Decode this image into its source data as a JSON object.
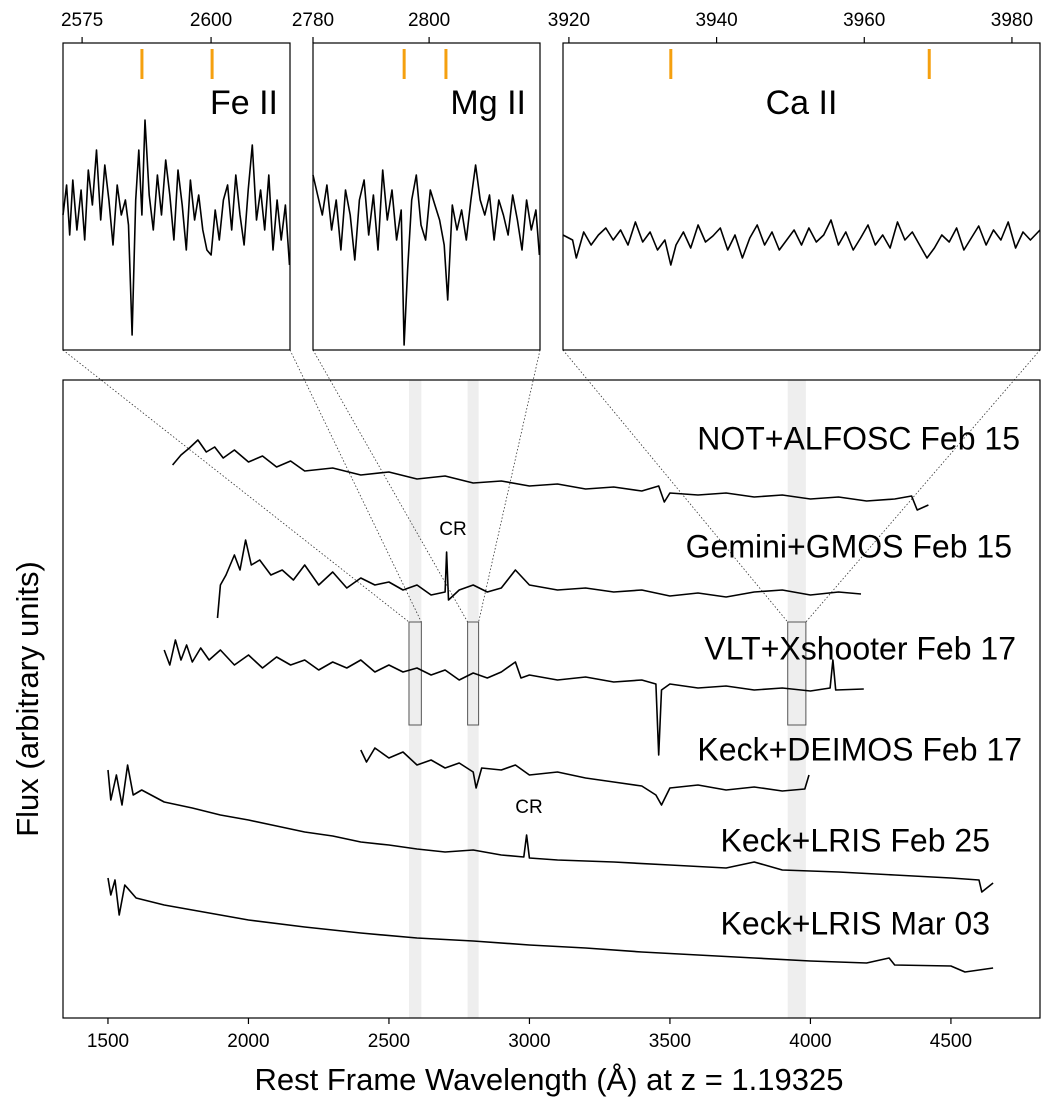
{
  "chart_data": [
    {
      "type": "line",
      "xlabel": "Rest Frame Wavelength (Å) at z = 1.19325",
      "ylabel": "Flux (arbitrary units)",
      "xlim": [
        1340,
        4817
      ],
      "ylim": [
        0,
        638
      ],
      "xticks": [
        1500,
        2000,
        2500,
        3000,
        3500,
        4000,
        4500
      ],
      "grid": false,
      "annotations": [
        "CR",
        "CR"
      ],
      "series": [
        {
          "name": "NOT+ALFOSC Feb 15",
          "color": "#000000",
          "x": [
            1730,
            1760,
            1790,
            1820,
            1850,
            1880,
            1910,
            1950,
            2000,
            2050,
            2100,
            2150,
            2200,
            2300,
            2400,
            2500,
            2600,
            2700,
            2800,
            2900,
            3000,
            3100,
            3200,
            3300,
            3400,
            3460,
            3480,
            3500,
            3600,
            3700,
            3800,
            3900,
            4000,
            4100,
            4200,
            4300,
            4360,
            4380,
            4420
          ],
          "values": [
            553,
            563,
            570,
            578,
            566,
            571,
            560,
            568,
            556,
            562,
            551,
            557,
            547,
            550,
            543,
            546,
            539,
            542,
            535,
            537,
            532,
            534,
            529,
            531,
            527,
            532,
            516,
            525,
            523,
            525,
            521,
            523,
            519,
            521,
            517,
            519,
            522,
            508,
            513
          ]
        },
        {
          "name": "Gemini+GMOS Feb 15",
          "color": "#000000",
          "x": [
            1890,
            1900,
            1920,
            1950,
            1970,
            1990,
            2010,
            2040,
            2080,
            2120,
            2160,
            2200,
            2250,
            2300,
            2350,
            2400,
            2450,
            2500,
            2550,
            2600,
            2650,
            2700,
            2705,
            2712,
            2750,
            2800,
            2850,
            2900,
            2950,
            3000,
            3100,
            3200,
            3300,
            3400,
            3500,
            3600,
            3700,
            3800,
            3900,
            4000,
            4100,
            4180
          ],
          "values": [
            400,
            433,
            443,
            463,
            448,
            478,
            453,
            458,
            443,
            448,
            438,
            453,
            433,
            446,
            430,
            440,
            433,
            436,
            428,
            433,
            423,
            426,
            466,
            418,
            428,
            433,
            426,
            430,
            448,
            433,
            428,
            430,
            426,
            428,
            422,
            425,
            421,
            426,
            428,
            423,
            426,
            424
          ]
        },
        {
          "name": "VLT+Xshooter Feb 17",
          "color": "#000000",
          "x": [
            1700,
            1720,
            1740,
            1760,
            1780,
            1800,
            1830,
            1860,
            1900,
            1950,
            2000,
            2050,
            2100,
            2150,
            2200,
            2250,
            2300,
            2350,
            2400,
            2450,
            2500,
            2550,
            2600,
            2650,
            2700,
            2750,
            2800,
            2850,
            2900,
            2950,
            2970,
            3000,
            3100,
            3200,
            3300,
            3400,
            3450,
            3460,
            3470,
            3500,
            3600,
            3700,
            3800,
            3900,
            4000,
            4070,
            4080,
            4090,
            4190
          ],
          "values": [
            368,
            353,
            378,
            358,
            373,
            356,
            370,
            358,
            368,
            353,
            363,
            350,
            361,
            353,
            358,
            348,
            356,
            350,
            358,
            346,
            353,
            346,
            350,
            343,
            348,
            338,
            345,
            340,
            346,
            356,
            340,
            343,
            338,
            341,
            336,
            338,
            334,
            263,
            328,
            334,
            330,
            332,
            328,
            330,
            327,
            330,
            358,
            328,
            329
          ]
        },
        {
          "name": "Keck+DEIMOS Feb 17",
          "color": "#000000",
          "x": [
            2400,
            2420,
            2450,
            2500,
            2550,
            2600,
            2650,
            2700,
            2750,
            2800,
            2810,
            2830,
            2900,
            2950,
            3000,
            3100,
            3200,
            3300,
            3400,
            3450,
            3470,
            3500,
            3600,
            3700,
            3800,
            3900,
            3980,
            3995
          ],
          "values": [
            268,
            256,
            270,
            260,
            266,
            253,
            258,
            250,
            255,
            246,
            230,
            250,
            248,
            253,
            243,
            246,
            240,
            236,
            232,
            223,
            213,
            230,
            233,
            228,
            231,
            227,
            229,
            243
          ]
        },
        {
          "name": "Keck+LRIS Feb 25",
          "color": "#000000",
          "x": [
            1500,
            1510,
            1530,
            1550,
            1570,
            1590,
            1620,
            1700,
            1800,
            1900,
            2000,
            2100,
            2200,
            2300,
            2400,
            2500,
            2600,
            2700,
            2800,
            2900,
            2980,
            2990,
            3000,
            3100,
            3300,
            3500,
            3700,
            3800,
            3900,
            4100,
            4300,
            4500,
            4600,
            4610,
            4650
          ],
          "values": [
            248,
            218,
            243,
            213,
            253,
            223,
            228,
            216,
            210,
            203,
            198,
            192,
            186,
            182,
            176,
            173,
            169,
            166,
            168,
            163,
            161,
            183,
            160,
            158,
            156,
            153,
            150,
            156,
            148,
            146,
            143,
            140,
            138,
            126,
            135
          ]
        },
        {
          "name": "Keck+LRIS Mar 03",
          "color": "#000000",
          "x": [
            1500,
            1510,
            1525,
            1540,
            1560,
            1600,
            1700,
            1800,
            1900,
            2000,
            2200,
            2400,
            2600,
            2800,
            3000,
            3200,
            3400,
            3600,
            3800,
            4000,
            4200,
            4280,
            4300,
            4500,
            4550,
            4650
          ],
          "values": [
            140,
            123,
            138,
            103,
            133,
            120,
            113,
            108,
            103,
            98,
            91,
            85,
            80,
            77,
            73,
            70,
            66,
            63,
            60,
            57,
            55,
            60,
            53,
            52,
            46,
            50
          ]
        }
      ]
    },
    {
      "type": "line",
      "title": "Fe II",
      "xlim": [
        2571.3,
        2615.3
      ],
      "ylim": [
        0,
        307
      ],
      "xticks": [
        2575,
        2600
      ],
      "lines": {
        "color": "#f5a00f",
        "x": [
          2586.6,
          2600.2
        ]
      },
      "series": [
        {
          "color": "#000000",
          "x": [
            2571.3,
            2572,
            2572.6,
            2573.2,
            2574,
            2574.8,
            2575.5,
            2576.2,
            2577,
            2577.8,
            2578.6,
            2579.4,
            2580.2,
            2581,
            2581.8,
            2582.6,
            2583.4,
            2584,
            2584.7,
            2585.4,
            2586,
            2586.6,
            2587.2,
            2588,
            2588.8,
            2589.6,
            2590.4,
            2591.2,
            2592,
            2592.8,
            2593.6,
            2594.4,
            2595.2,
            2596,
            2596.8,
            2597.6,
            2598.4,
            2599.2,
            2600,
            2600.8,
            2601.6,
            2602.4,
            2603.2,
            2604,
            2604.8,
            2605.6,
            2606.4,
            2607.2,
            2608,
            2608.8,
            2609.6,
            2610.4,
            2611.2,
            2612,
            2612.8,
            2613.6,
            2614.4,
            2615.2
          ],
          "values": [
            135,
            165,
            115,
            170,
            120,
            160,
            110,
            180,
            145,
            200,
            130,
            185,
            150,
            105,
            165,
            135,
            150,
            125,
            15,
            150,
            200,
            135,
            230,
            155,
            120,
            175,
            135,
            190,
            155,
            110,
            180,
            145,
            100,
            170,
            130,
            155,
            120,
            100,
            95,
            140,
            110,
            150,
            165,
            120,
            175,
            135,
            105,
            160,
            205,
            130,
            160,
            120,
            175,
            100,
            150,
            110,
            145,
            85
          ]
        }
      ]
    },
    {
      "type": "line",
      "title": "Mg II",
      "xlim": [
        2780,
        2819.1
      ],
      "ylim": [
        0,
        307
      ],
      "xticks": [
        2780,
        2800
      ],
      "lines": {
        "color": "#f5a00f",
        "x": [
          2795.7,
          2802.9
        ]
      },
      "series": [
        {
          "color": "#000000",
          "x": [
            2780,
            2780.8,
            2781.6,
            2782.4,
            2783.2,
            2784,
            2784.8,
            2785.6,
            2786.4,
            2787.2,
            2788,
            2788.8,
            2789.6,
            2790.4,
            2791.2,
            2792,
            2792.8,
            2793.6,
            2794.4,
            2795.2,
            2795.7,
            2796.3,
            2797,
            2797.8,
            2798.6,
            2799.4,
            2800.2,
            2801,
            2801.8,
            2802.6,
            2803.2,
            2804,
            2804.8,
            2805.6,
            2806.4,
            2807.2,
            2808,
            2808.8,
            2809.6,
            2810.4,
            2811.2,
            2812,
            2812.8,
            2813.6,
            2814.4,
            2815.2,
            2816,
            2816.8,
            2817.6,
            2818.4,
            2819
          ],
          "values": [
            175,
            155,
            135,
            165,
            120,
            150,
            100,
            160,
            135,
            90,
            150,
            170,
            115,
            155,
            100,
            180,
            130,
            160,
            110,
            140,
            5,
            80,
            150,
            175,
            125,
            110,
            160,
            145,
            130,
            105,
            50,
            145,
            120,
            140,
            110,
            150,
            185,
            150,
            135,
            155,
            110,
            150,
            135,
            115,
            155,
            130,
            100,
            150,
            120,
            140,
            95
          ]
        }
      ]
    },
    {
      "type": "line",
      "title": "Ca II",
      "xlim": [
        3919.2,
        3983.8
      ],
      "ylim": [
        0,
        307
      ],
      "xticks": [
        3920,
        3940,
        3960,
        3980
      ],
      "lines": {
        "color": "#f5a00f",
        "x": [
          3933.8,
          3968.8
        ]
      },
      "series": [
        {
          "color": "#000000",
          "x": [
            3919.2,
            3920.5,
            3921,
            3922,
            3923,
            3924,
            3925,
            3926,
            3927,
            3928,
            3929,
            3930,
            3931,
            3932,
            3933,
            3933.8,
            3934.5,
            3935.5,
            3936.5,
            3937.5,
            3938.5,
            3939.5,
            3940.5,
            3941.5,
            3942.5,
            3943.5,
            3944.5,
            3945.5,
            3946.5,
            3947.5,
            3948.5,
            3949.5,
            3950.5,
            3951.5,
            3952.5,
            3953.5,
            3954.5,
            3955.5,
            3956.5,
            3957.5,
            3958.5,
            3959.5,
            3960.5,
            3961.5,
            3962.5,
            3963.5,
            3964.5,
            3965.5,
            3966.5,
            3967.5,
            3968.5,
            3969.5,
            3970.5,
            3971.5,
            3972.5,
            3973.5,
            3974.5,
            3975.5,
            3976.5,
            3977.5,
            3978.5,
            3979.5,
            3980.5,
            3981.5,
            3982.5,
            3983.8
          ],
          "values": [
            115,
            110,
            92,
            118,
            105,
            115,
            122,
            110,
            120,
            105,
            128,
            108,
            118,
            100,
            110,
            85,
            105,
            118,
            102,
            125,
            108,
            114,
            122,
            100,
            115,
            92,
            112,
            125,
            105,
            118,
            100,
            110,
            120,
            105,
            122,
            108,
            115,
            130,
            105,
            118,
            100,
            112,
            125,
            105,
            115,
            102,
            128,
            110,
            118,
            105,
            92,
            102,
            115,
            108,
            122,
            100,
            112,
            124,
            105,
            120,
            110,
            128,
            102,
            118,
            110,
            120
          ]
        }
      ]
    }
  ]
}
